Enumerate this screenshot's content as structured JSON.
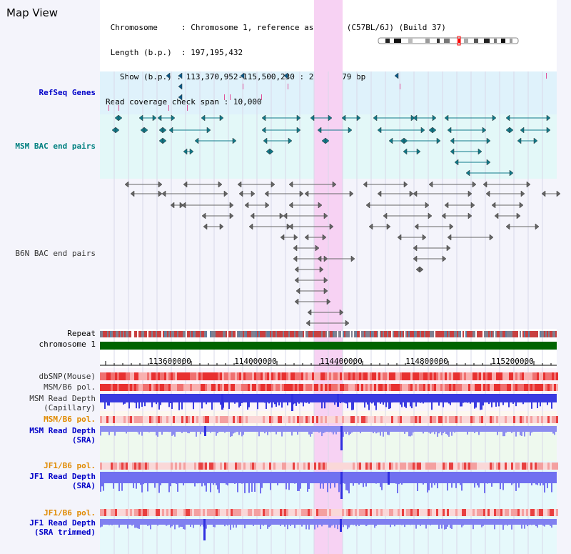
{
  "title": "Map View",
  "info": {
    "chromosome_key": "Chromosome",
    "chromosome_val": "Chromosome 1, reference assembly (C57BL/6J) (Build 37)",
    "length_key": "Length (b.p.)",
    "length_val": "197,195,432",
    "show_key": "Show (b.p.)",
    "show_val": "113,370,952-115,500,230 : 2,129,279 bp",
    "coverage_key": "Read coverage check span",
    "coverage_val": "10,000"
  },
  "tracks": {
    "refseq": "RefSeq Genes",
    "msm_bac": "MSM BAC end pairs",
    "b6n_bac": "B6N BAC end pairs",
    "repeat": "Repeat",
    "chromosome": "chromosome 1",
    "dbsnp": "dbSNP(Mouse)",
    "msm_b6_pol": "MSM/B6 pol.",
    "msm_depth_cap_1": "MSM Read Depth",
    "msm_depth_cap_2": "(Capillary)",
    "msm_b6_pol_2": "MSM/B6 pol.",
    "msm_depth_sra_1": "MSM Read Depth",
    "msm_depth_sra_2": "(SRA)",
    "jf1_b6_pol": "JF1/B6 pol.",
    "jf1_depth_sra_1": "JF1 Read Depth",
    "jf1_depth_sra_2": "(SRA)",
    "jf1_b6_pol_2": "JF1/B6 pol.",
    "jf1_depth_trim_1": "JF1 Read Depth",
    "jf1_depth_trim_2": "(SRA trimmed)"
  },
  "axis": {
    "ticks": [
      "113600000",
      "114000000",
      "114400000",
      "114800000",
      "115200000"
    ]
  },
  "colors": {
    "refseq_label": "#0000c8",
    "msm_bac_label": "#008080",
    "pol_label": "#e08a00",
    "depth_label": "#0000c8",
    "highlight": "#f7d2f3",
    "refseq_bg": "#dff2fb",
    "msm_bg": "#e3f8f8",
    "chromosome_bar": "#006400"
  }
}
